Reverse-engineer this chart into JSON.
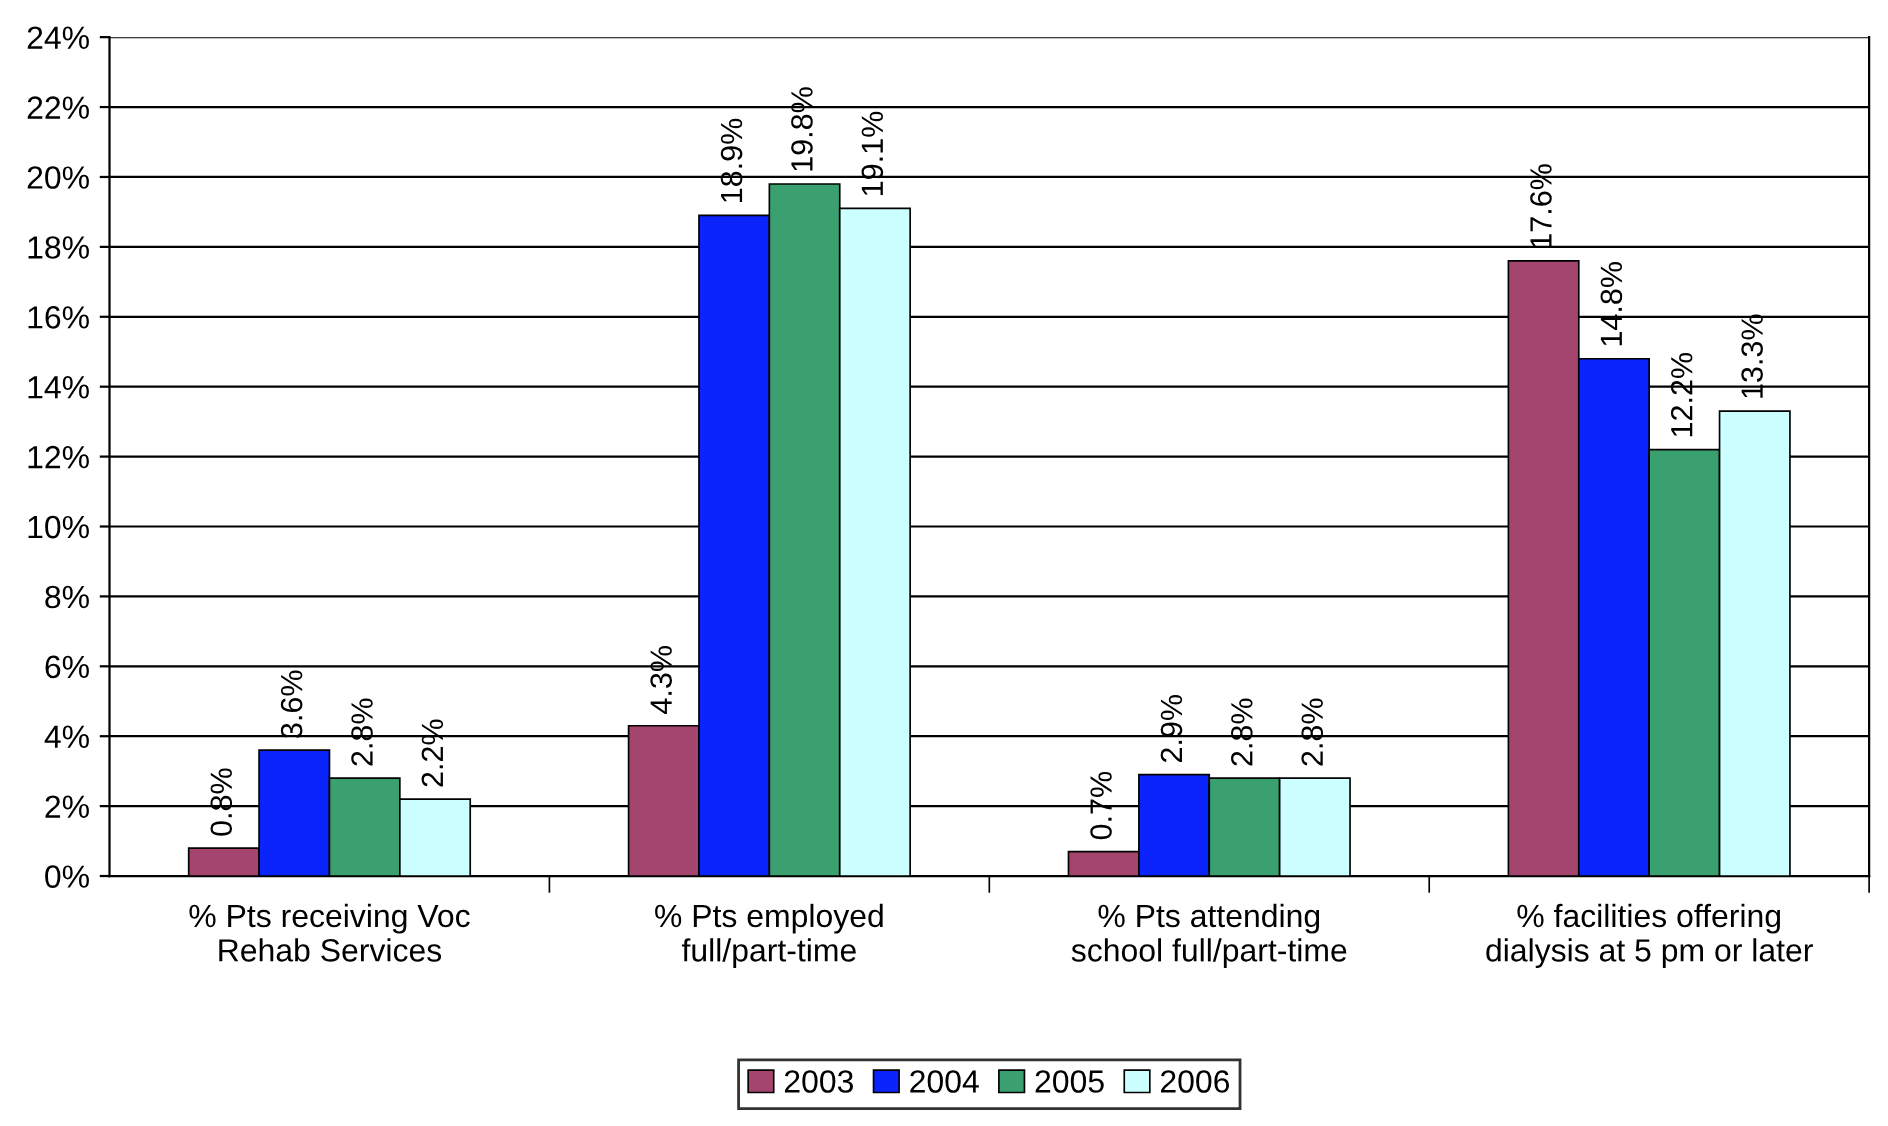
{
  "chart_data": {
    "type": "bar",
    "categories": [
      "% Pts receiving Voc\nRehab Services",
      "% Pts employed\nfull/part-time",
      "% Pts attending\nschool full/part-time",
      "% facilities offering\ndialysis at 5 pm or later"
    ],
    "series": [
      {
        "name": "2003",
        "color": "#a4456f",
        "values": [
          0.8,
          4.3,
          0.7,
          17.6
        ]
      },
      {
        "name": "2004",
        "color": "#0b24fb",
        "values": [
          3.6,
          18.9,
          2.9,
          14.8
        ]
      },
      {
        "name": "2005",
        "color": "#3aa070",
        "values": [
          2.8,
          19.8,
          2.8,
          12.2
        ]
      },
      {
        "name": "2006",
        "color": "#ccffff",
        "values": [
          2.2,
          19.1,
          2.8,
          13.3
        ]
      }
    ],
    "value_labels": [
      [
        "0.8%",
        "4.3%",
        "0.7%",
        "17.6%"
      ],
      [
        "3.6%",
        "18.9%",
        "2.9%",
        "14.8%"
      ],
      [
        "2.8%",
        "19.8%",
        "2.8%",
        "12.2%"
      ],
      [
        "2.2%",
        "19.1%",
        "2.8%",
        "13.3%"
      ]
    ],
    "ylim": [
      0,
      24
    ],
    "yticks": [
      {
        "value": 0,
        "label": "0%"
      },
      {
        "value": 2,
        "label": "2%"
      },
      {
        "value": 4,
        "label": "4%"
      },
      {
        "value": 6,
        "label": "6%"
      },
      {
        "value": 8,
        "label": "8%"
      },
      {
        "value": 10,
        "label": "10%"
      },
      {
        "value": 12,
        "label": "12%"
      },
      {
        "value": 14,
        "label": "14%"
      },
      {
        "value": 16,
        "label": "16%"
      },
      {
        "value": 18,
        "label": "18%"
      },
      {
        "value": 20,
        "label": "20%"
      },
      {
        "value": 22,
        "label": "22%"
      },
      {
        "value": 24,
        "label": "24%"
      }
    ],
    "grid": "y",
    "legend": "bottom"
  }
}
